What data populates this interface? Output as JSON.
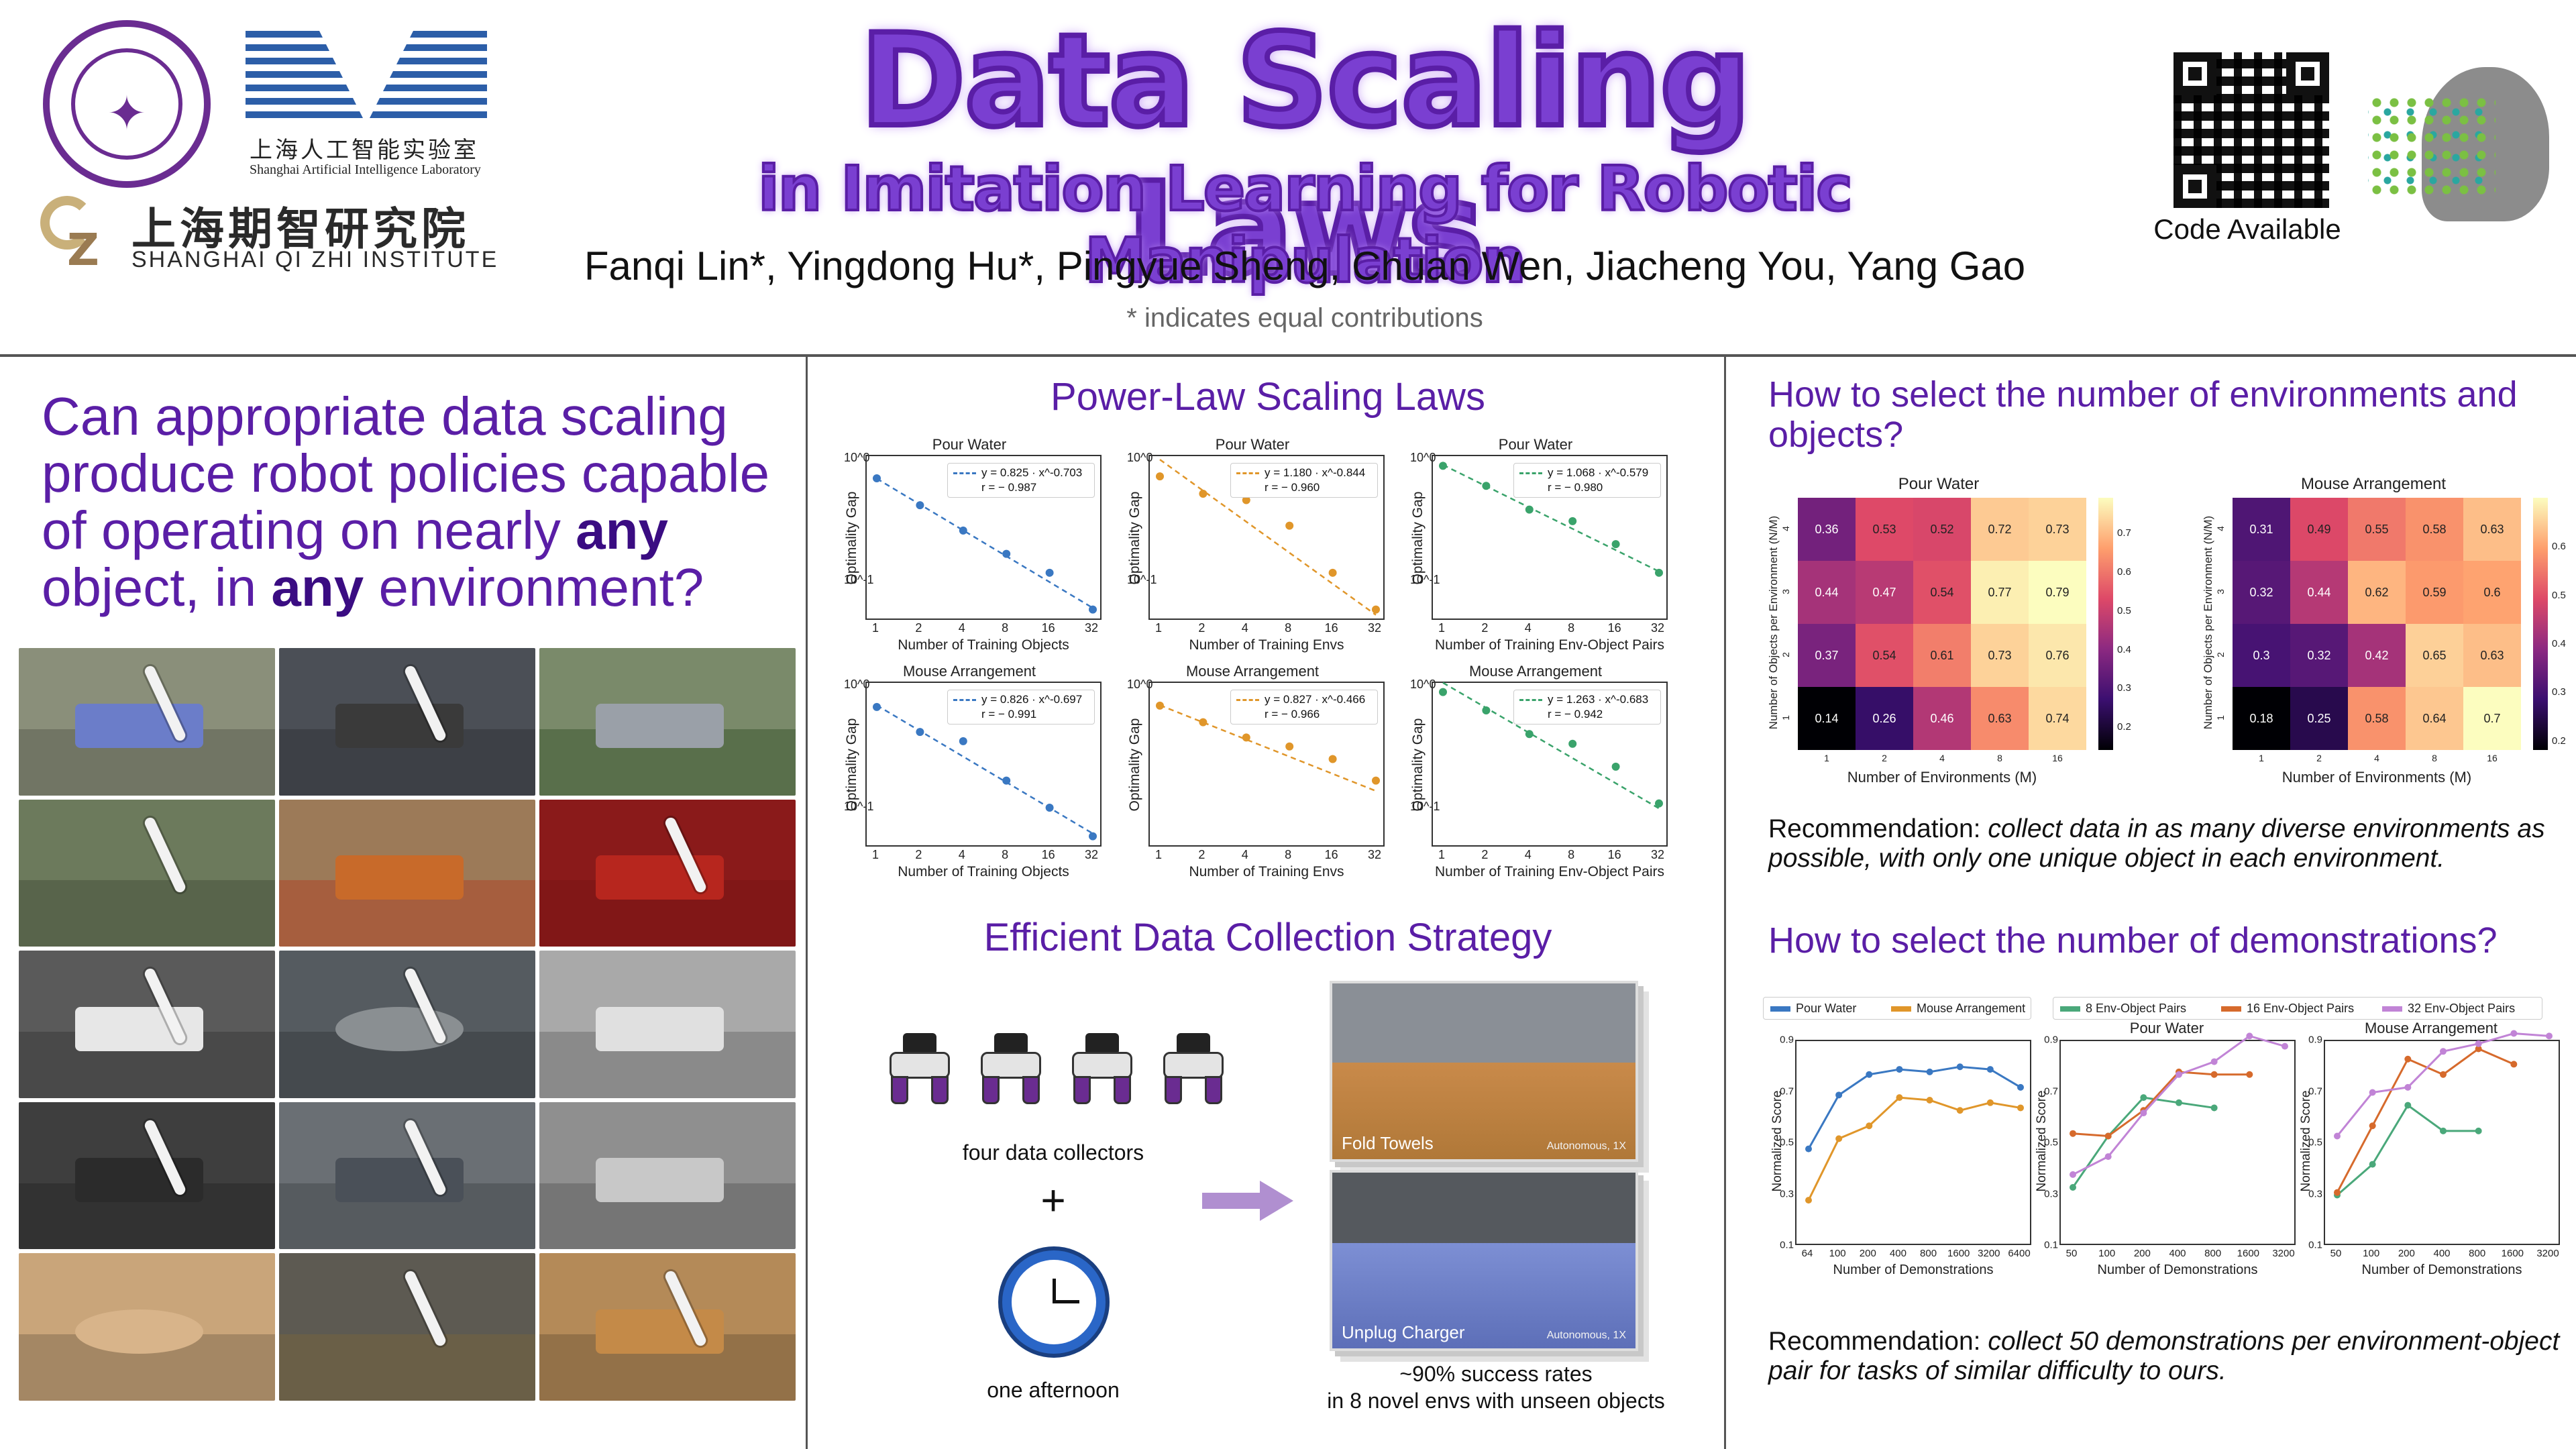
{
  "header": {
    "title": "Data Scaling Laws",
    "subtitle": "in Imitation Learning for Robotic Manipulation",
    "authors": "Fanqi Lin*, Yingdong Hu*, Pingyue Sheng, Chuan Wen, Jiacheng You, Yang Gao",
    "equal_contribution": "* indicates equal contributions",
    "code_label": "Code Available",
    "logos": {
      "shailab_cn": "上海人工智能实验室",
      "shailab_en": "Shanghai Artificial Intelligence Laboratory",
      "qizhi_cn": "上海期智研究院",
      "qizhi_en": "SHANGHAI QI ZHI INSTITUTE"
    }
  },
  "question": {
    "part1": "Can appropriate data scaling produce robot policies capable of operating on nearly ",
    "any1": "any",
    "part2": " object, in ",
    "any2": "any",
    "part3": " environment?"
  },
  "power_law": {
    "title": "Power-Law Scaling Laws",
    "ylabel": "Optimality Gap",
    "plots": [
      {
        "title": "Pour Water",
        "xlabel": "Number of Training Objects",
        "eq": "y = 0.825 · x^-0.703",
        "r": "r = − 0.987",
        "color": "#3a78c2",
        "ytop": "10^0",
        "ybot": "10^-1"
      },
      {
        "title": "Pour Water",
        "xlabel": "Number of Training Envs",
        "eq": "y = 1.180 · x^-0.844",
        "r": "r = − 0.960",
        "color": "#e0962a",
        "ytop": "10^0",
        "ybot": "10^-1"
      },
      {
        "title": "Pour Water",
        "xlabel": "Number of Training Env-Object Pairs",
        "eq": "y = 1.068 · x^-0.579",
        "r": "r = − 0.980",
        "color": "#3aa36b",
        "ytop": "10^0",
        "ybot": "10^-1"
      },
      {
        "title": "Mouse Arrangement",
        "xlabel": "Number of Training Objects",
        "eq": "y = 0.826 · x^-0.697",
        "r": "r = − 0.991",
        "color": "#3a78c2",
        "ytop": "10^0",
        "ybot": "10^-1"
      },
      {
        "title": "Mouse Arrangement",
        "xlabel": "Number of Training Envs",
        "eq": "y = 0.827 · x^-0.466",
        "r": "r = − 0.966",
        "color": "#e0962a",
        "ytop": "10^0",
        "ybot": ""
      },
      {
        "title": "Mouse Arrangement",
        "xlabel": "Number of Training Env-Object Pairs",
        "eq": "y = 1.263 · x^-0.683",
        "r": "r = − 0.942",
        "color": "#3aa36b",
        "ytop": "10^0",
        "ybot": "10^-1"
      }
    ],
    "xticks": [
      "1",
      "2",
      "4",
      "8",
      "16",
      "32"
    ]
  },
  "collection": {
    "title": "Efficient Data Collection Strategy",
    "collectors_caption": "four data collectors",
    "plus": "+",
    "time_caption": "one afternoon",
    "video1_task": "Fold Towels",
    "video1_auto": "Autonomous, 1X",
    "video2_task": "Unplug Charger",
    "video2_auto": "Autonomous, 1X",
    "result_line1": "~90% success rates",
    "result_line2": "in 8 novel envs with unseen objects"
  },
  "env_obj": {
    "question": "How to select the number of environments and objects?",
    "xlabel": "Number of Environments (M)",
    "ylabel": "Number of Objects per Environment (N/M)",
    "xticks": [
      "1",
      "2",
      "4",
      "8",
      "16"
    ],
    "yticks": [
      "4",
      "3",
      "2",
      "1"
    ],
    "recommendation_label": "Recommendation: ",
    "recommendation_text": "collect data in as many diverse environments as possible, with only one unique object in each environment."
  },
  "demos": {
    "question": "How to select the number of demonstrations?",
    "legend_left": [
      "Pour Water",
      "Mouse Arrangement"
    ],
    "legend_right": [
      "8 Env-Object Pairs",
      "16 Env-Object Pairs",
      "32 Env-Object Pairs"
    ],
    "ylabel": "Normalized Score",
    "xlabel": "Number of Demonstrations",
    "plot1_xticks": [
      "64",
      "100",
      "200",
      "400",
      "800",
      "1600",
      "3200",
      "6400"
    ],
    "plot1_yticks": [
      "0.9",
      "0.7",
      "0.5",
      "0.3",
      "0.1"
    ],
    "plot2_title": "Pour Water",
    "plot3_title": "Mouse Arrangement",
    "plot23_xticks": [
      "50",
      "100",
      "200",
      "400",
      "800",
      "1600",
      "3200"
    ],
    "plot23_yticks": [
      "0.9",
      "0.7",
      "0.5",
      "0.3",
      "0.1"
    ],
    "recommendation_label": "Recommendation: ",
    "recommendation_text": "collect 50 demonstrations per environment-object pair for tasks of similar difficulty to ours."
  },
  "chart_data": [
    {
      "type": "scatter",
      "title": "Pour Water",
      "xlabel": "Number of Training Objects",
      "ylabel": "Optimality Gap",
      "log_scale": true,
      "x": [
        1,
        2,
        4,
        8,
        16,
        32
      ],
      "y": [
        0.83,
        0.5,
        0.31,
        0.2,
        0.14,
        0.07
      ],
      "fit": {
        "a": 0.825,
        "b": -0.703,
        "r": -0.987
      }
    },
    {
      "type": "scatter",
      "title": "Pour Water",
      "xlabel": "Number of Training Envs",
      "ylabel": "Optimality Gap",
      "log_scale": true,
      "x": [
        1,
        2,
        4,
        8,
        16,
        32
      ],
      "y": [
        0.86,
        0.62,
        0.55,
        0.34,
        0.14,
        0.07
      ],
      "fit": {
        "a": 1.18,
        "b": -0.844,
        "r": -0.96
      }
    },
    {
      "type": "scatter",
      "title": "Pour Water",
      "xlabel": "Number of Training Env-Object Pairs",
      "ylabel": "Optimality Gap",
      "log_scale": true,
      "x": [
        1,
        2,
        4,
        8,
        16,
        32
      ],
      "y": [
        1.05,
        0.72,
        0.46,
        0.37,
        0.24,
        0.14
      ],
      "fit": {
        "a": 1.068,
        "b": -0.579,
        "r": -0.98
      }
    },
    {
      "type": "scatter",
      "title": "Mouse Arrangement",
      "xlabel": "Number of Training Objects",
      "ylabel": "Optimality Gap",
      "log_scale": true,
      "x": [
        1,
        2,
        4,
        8,
        16,
        32
      ],
      "y": [
        0.8,
        0.5,
        0.42,
        0.2,
        0.12,
        0.07
      ],
      "fit": {
        "a": 0.826,
        "b": -0.697,
        "r": -0.991
      }
    },
    {
      "type": "scatter",
      "title": "Mouse Arrangement",
      "xlabel": "Number of Training Envs",
      "ylabel": "Optimality Gap",
      "log_scale": true,
      "x": [
        1,
        2,
        4,
        8,
        16,
        32
      ],
      "y": [
        0.82,
        0.6,
        0.45,
        0.38,
        0.3,
        0.2
      ],
      "fit": {
        "a": 0.827,
        "b": -0.466,
        "r": -0.966
      }
    },
    {
      "type": "scatter",
      "title": "Mouse Arrangement",
      "xlabel": "Number of Training Env-Object Pairs",
      "ylabel": "Optimality Gap",
      "log_scale": true,
      "x": [
        1,
        2,
        4,
        8,
        16,
        32
      ],
      "y": [
        1.06,
        0.75,
        0.48,
        0.4,
        0.26,
        0.13
      ],
      "fit": {
        "a": 1.263,
        "b": -0.683,
        "r": -0.942
      }
    },
    {
      "type": "heatmap",
      "title": "Pour Water",
      "xlabel": "Number of Environments (M)",
      "ylabel": "Number of Objects per Environment (N/M)",
      "x": [
        "1",
        "2",
        "4",
        "8",
        "16"
      ],
      "y": [
        "4",
        "3",
        "2",
        "1"
      ],
      "values": [
        [
          0.36,
          0.53,
          0.52,
          0.72,
          0.73
        ],
        [
          0.44,
          0.47,
          0.54,
          0.77,
          0.79
        ],
        [
          0.37,
          0.54,
          0.61,
          0.73,
          0.76
        ],
        [
          0.14,
          0.26,
          0.46,
          0.63,
          0.74
        ]
      ],
      "colorbar_ticks": [
        0.2,
        0.3,
        0.4,
        0.5,
        0.6,
        0.7
      ]
    },
    {
      "type": "heatmap",
      "title": "Mouse Arrangement",
      "xlabel": "Number of Environments (M)",
      "ylabel": "Number of Objects per Environment (N/M)",
      "x": [
        "1",
        "2",
        "4",
        "8",
        "16"
      ],
      "y": [
        "4",
        "3",
        "2",
        "1"
      ],
      "values": [
        [
          0.31,
          0.49,
          0.55,
          0.58,
          0.63
        ],
        [
          0.32,
          0.44,
          0.62,
          0.59,
          0.6
        ],
        [
          0.3,
          0.32,
          0.42,
          0.65,
          0.63
        ],
        [
          0.18,
          0.25,
          0.58,
          0.64,
          0.7
        ]
      ],
      "colorbar_ticks": [
        0.2,
        0.3,
        0.4,
        0.5,
        0.6
      ]
    },
    {
      "type": "line",
      "title": "",
      "xlabel": "Number of Demonstrations",
      "ylabel": "Normalized Score",
      "categories": [
        "64",
        "100",
        "200",
        "400",
        "800",
        "1600",
        "3200",
        "6400"
      ],
      "ylim": [
        0.1,
        0.9
      ],
      "series": [
        {
          "name": "Pour Water",
          "color": "#3a78c2",
          "values": [
            0.48,
            0.69,
            0.77,
            0.79,
            0.78,
            0.8,
            0.79,
            0.72
          ]
        },
        {
          "name": "Mouse Arrangement",
          "color": "#e0962a",
          "values": [
            0.28,
            0.52,
            0.57,
            0.68,
            0.67,
            0.63,
            0.66,
            0.64
          ]
        }
      ]
    },
    {
      "type": "line",
      "title": "Pour Water",
      "xlabel": "Number of Demonstrations",
      "ylabel": "Normalized Score",
      "categories": [
        "50",
        "100",
        "200",
        "400",
        "800",
        "1600",
        "3200"
      ],
      "ylim": [
        0.1,
        0.9
      ],
      "series": [
        {
          "name": "8 Env-Object Pairs",
          "color": "#4aa87a",
          "values": [
            0.33,
            0.53,
            0.68,
            0.66,
            0.64,
            null,
            null
          ]
        },
        {
          "name": "16 Env-Object Pairs",
          "color": "#d66a2c",
          "values": [
            0.54,
            0.53,
            0.63,
            0.78,
            0.77,
            0.77,
            null
          ]
        },
        {
          "name": "32 Env-Object Pairs",
          "color": "#c184d6",
          "values": [
            0.38,
            0.45,
            0.62,
            0.77,
            0.82,
            0.92,
            0.88
          ]
        }
      ]
    },
    {
      "type": "line",
      "title": "Mouse Arrangement",
      "xlabel": "Number of Demonstrations",
      "ylabel": "Normalized Score",
      "categories": [
        "50",
        "100",
        "200",
        "400",
        "800",
        "1600",
        "3200"
      ],
      "ylim": [
        0.1,
        0.9
      ],
      "series": [
        {
          "name": "8 Env-Object Pairs",
          "color": "#4aa87a",
          "values": [
            0.3,
            0.42,
            0.65,
            0.55,
            0.55,
            null,
            null
          ]
        },
        {
          "name": "16 Env-Object Pairs",
          "color": "#d66a2c",
          "values": [
            0.31,
            0.57,
            0.83,
            0.77,
            0.87,
            0.81,
            null
          ]
        },
        {
          "name": "32 Env-Object Pairs",
          "color": "#c184d6",
          "values": [
            0.53,
            0.7,
            0.72,
            0.86,
            0.89,
            0.93,
            0.92
          ]
        }
      ]
    }
  ]
}
